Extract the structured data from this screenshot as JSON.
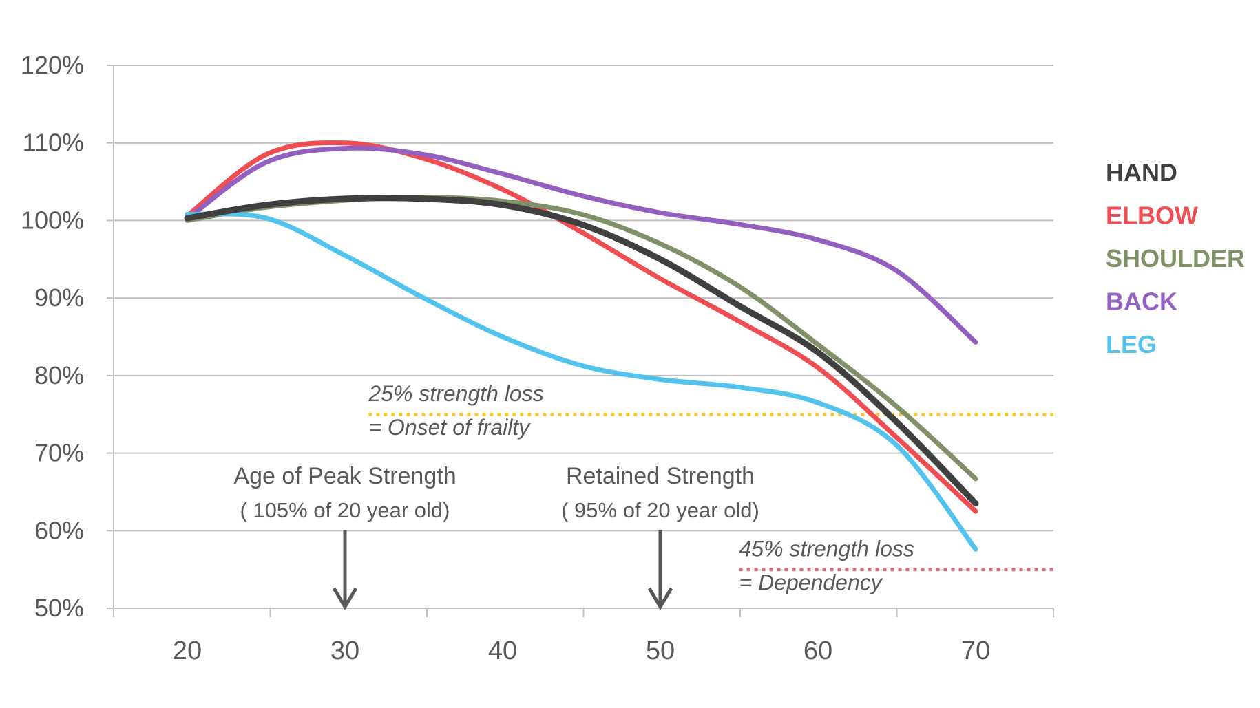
{
  "chart_data": {
    "type": "line",
    "xlabel": "",
    "ylabel": "",
    "xlim": [
      15,
      75
    ],
    "ylim": [
      50,
      120
    ],
    "x_ticks": [
      20,
      30,
      40,
      50,
      60,
      70
    ],
    "y_ticks": [
      {
        "value": 50,
        "label": "50%"
      },
      {
        "value": 60,
        "label": "60%"
      },
      {
        "value": 70,
        "label": "70%"
      },
      {
        "value": 80,
        "label": "80%"
      },
      {
        "value": 90,
        "label": "90%"
      },
      {
        "value": 100,
        "label": "100%"
      },
      {
        "value": 110,
        "label": "110%"
      },
      {
        "value": 120,
        "label": "120%"
      }
    ],
    "grid": true,
    "legend_position": "right",
    "series": [
      {
        "name": "ELBOW",
        "color": "#ee4d52",
        "x": [
          20,
          25,
          30,
          35,
          40,
          45,
          50,
          55,
          60,
          65,
          70
        ],
        "values": [
          100.6,
          108.5,
          110,
          108,
          104,
          98.5,
          92.5,
          87,
          81,
          72,
          62.5
        ]
      },
      {
        "name": "BACK",
        "color": "#9460c0",
        "x": [
          20,
          25,
          30,
          35,
          40,
          45,
          50,
          55,
          60,
          65,
          70
        ],
        "values": [
          100.2,
          107.5,
          109.3,
          108.5,
          106,
          103.2,
          101,
          99.5,
          97.5,
          93.5,
          84.3
        ]
      },
      {
        "name": "SHOULDER",
        "color": "#7f9169",
        "x": [
          20,
          25,
          30,
          35,
          40,
          45,
          50,
          55,
          60,
          65,
          70
        ],
        "values": [
          100,
          101.7,
          102.6,
          103,
          102.5,
          100.8,
          97,
          91.5,
          84,
          76,
          66.7
        ]
      },
      {
        "name": "LEG",
        "color": "#52c3ec",
        "x": [
          20,
          25,
          30,
          35,
          40,
          45,
          50,
          55,
          60,
          65,
          70
        ],
        "values": [
          100.8,
          100.3,
          95.5,
          90,
          85,
          81.3,
          79.5,
          78.5,
          76.5,
          71,
          57.6
        ]
      },
      {
        "name": "HAND",
        "color": "#404040",
        "x": [
          20,
          25,
          30,
          35,
          40,
          45,
          50,
          55,
          60,
          65,
          70
        ],
        "values": [
          100.3,
          102,
          102.8,
          102.8,
          102,
          99.5,
          95,
          89,
          83,
          74,
          63.5
        ]
      }
    ],
    "legend": [
      {
        "label": "HAND",
        "color": "#404040"
      },
      {
        "label": "ELBOW",
        "color": "#ee4d52"
      },
      {
        "label": "SHOULDER",
        "color": "#7f9169"
      },
      {
        "label": "BACK",
        "color": "#9460c0"
      },
      {
        "label": "LEG",
        "color": "#52c3ec"
      }
    ],
    "thresholds": [
      {
        "value": 75,
        "x_start": 31.5,
        "color": "#f5c930",
        "line1": "25% strength loss",
        "line2": "= Onset of frailty"
      },
      {
        "value": 55,
        "x_start": 55,
        "color": "#d76a75",
        "line1": "45% strength loss",
        "line2": "= Dependency"
      }
    ],
    "annotations": [
      {
        "title": "Age of Peak Strength",
        "subtitle": "( 105% of 20 year old)",
        "x": 30
      },
      {
        "title": "Retained Strength",
        "subtitle": "( 95% of 20 year old)",
        "x": 50
      }
    ]
  }
}
